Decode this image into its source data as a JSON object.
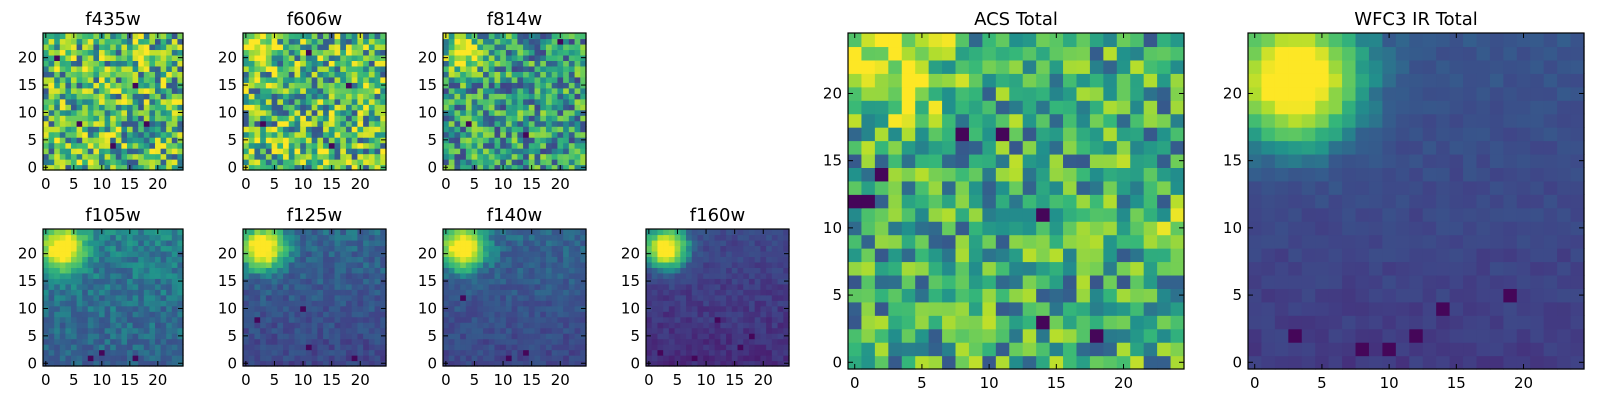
{
  "chart_data": [
    {
      "type": "heatmap",
      "title": "f435w",
      "colormap": "viridis",
      "grid_size": [
        25,
        25
      ],
      "xticks": [
        0,
        5,
        10,
        15,
        20
      ],
      "yticks": [
        0,
        5,
        10,
        15,
        20
      ],
      "blobs": [],
      "noise": 0.35,
      "base": 0.68,
      "bright_spots": [
        [
          24,
          22
        ],
        [
          10,
          12
        ],
        [
          7,
          14
        ]
      ],
      "dark_spots": [
        [
          16,
          15
        ],
        [
          2,
          20
        ],
        [
          18,
          8
        ],
        [
          12,
          4
        ],
        [
          6,
          8
        ]
      ]
    },
    {
      "type": "heatmap",
      "title": "f606w",
      "colormap": "viridis",
      "grid_size": [
        25,
        25
      ],
      "xticks": [
        0,
        5,
        10,
        15,
        20
      ],
      "yticks": [
        0,
        5,
        10,
        15,
        20
      ],
      "blobs": [
        {
          "x": 2,
          "y": 22,
          "r": 2.4,
          "amp": 0.35
        }
      ],
      "noise": 0.35,
      "base": 0.68,
      "bright_spots": [
        [
          3,
          22
        ],
        [
          2,
          23
        ]
      ],
      "dark_spots": [
        [
          11,
          21
        ],
        [
          18,
          15
        ],
        [
          15,
          4
        ],
        [
          3,
          8
        ]
      ]
    },
    {
      "type": "heatmap",
      "title": "f814w",
      "colormap": "viridis",
      "grid_size": [
        25,
        25
      ],
      "xticks": [
        0,
        5,
        10,
        15,
        20
      ],
      "yticks": [
        0,
        5,
        10,
        15,
        20
      ],
      "blobs": [
        {
          "x": 3,
          "y": 21,
          "r": 2.2,
          "amp": 0.55
        }
      ],
      "noise": 0.3,
      "base": 0.55,
      "bright_spots": [
        [
          3,
          21
        ],
        [
          4,
          22
        ]
      ],
      "dark_spots": [
        [
          4,
          8
        ],
        [
          20,
          23
        ],
        [
          14,
          6
        ]
      ]
    },
    {
      "type": "heatmap",
      "title": "f105w",
      "colormap": "viridis",
      "grid_size": [
        25,
        25
      ],
      "xticks": [
        0,
        5,
        10,
        15,
        20
      ],
      "yticks": [
        0,
        5,
        10,
        15,
        20
      ],
      "blobs": [
        {
          "x": 3,
          "y": 21,
          "r": 2.5,
          "amp": 0.75
        }
      ],
      "noise": 0.08,
      "base": 0.42,
      "gradient": 0.1,
      "bright_spots": [
        [
          3,
          21
        ],
        [
          2,
          22
        ]
      ],
      "dark_spots": [
        [
          10,
          2
        ],
        [
          8,
          1
        ],
        [
          16,
          1
        ]
      ]
    },
    {
      "type": "heatmap",
      "title": "f125w",
      "colormap": "viridis",
      "grid_size": [
        25,
        25
      ],
      "xticks": [
        0,
        5,
        10,
        15,
        20
      ],
      "yticks": [
        0,
        5,
        10,
        15,
        20
      ],
      "blobs": [
        {
          "x": 3,
          "y": 21,
          "r": 2.5,
          "amp": 0.8
        }
      ],
      "noise": 0.08,
      "base": 0.33,
      "gradient": 0.12,
      "bright_spots": [
        [
          3,
          21
        ]
      ],
      "dark_spots": [
        [
          2,
          8
        ],
        [
          11,
          3
        ],
        [
          19,
          1
        ],
        [
          10,
          10
        ]
      ]
    },
    {
      "type": "heatmap",
      "title": "f140w",
      "colormap": "viridis",
      "grid_size": [
        25,
        25
      ],
      "xticks": [
        0,
        5,
        10,
        15,
        20
      ],
      "yticks": [
        0,
        5,
        10,
        15,
        20
      ],
      "blobs": [
        {
          "x": 3,
          "y": 21,
          "r": 2.5,
          "amp": 0.8
        }
      ],
      "noise": 0.07,
      "base": 0.33,
      "gradient": 0.12,
      "bright_spots": [
        [
          3,
          21
        ],
        [
          2,
          22
        ]
      ],
      "dark_spots": [
        [
          14,
          2
        ],
        [
          11,
          1
        ],
        [
          3,
          12
        ]
      ]
    },
    {
      "type": "heatmap",
      "title": "f160w",
      "colormap": "viridis",
      "grid_size": [
        25,
        25
      ],
      "xticks": [
        0,
        5,
        10,
        15,
        20
      ],
      "yticks": [
        0,
        5,
        10,
        15,
        20
      ],
      "blobs": [
        {
          "x": 3,
          "y": 21,
          "r": 2.5,
          "amp": 0.85
        }
      ],
      "noise": 0.06,
      "base": 0.22,
      "gradient": 0.12,
      "bright_spots": [
        [
          3,
          21
        ],
        [
          2,
          22
        ]
      ],
      "dark_spots": [
        [
          2,
          2
        ],
        [
          8,
          1
        ],
        [
          18,
          5
        ],
        [
          16,
          3
        ],
        [
          12,
          8
        ]
      ]
    },
    {
      "type": "heatmap",
      "title": "ACS Total",
      "colormap": "viridis",
      "grid_size": [
        25,
        25
      ],
      "xticks": [
        0,
        5,
        10,
        15,
        20
      ],
      "yticks": [
        0,
        5,
        10,
        15,
        20
      ],
      "blobs": [
        {
          "x": 3,
          "y": 22,
          "r": 2.8,
          "amp": 0.35
        }
      ],
      "noise": 0.28,
      "base": 0.62,
      "bright_spots": [
        [
          2,
          22
        ],
        [
          3,
          23
        ],
        [
          4,
          21
        ],
        [
          24,
          11
        ],
        [
          23,
          10
        ]
      ],
      "dark_spots": [
        [
          0,
          12
        ],
        [
          8,
          17
        ],
        [
          11,
          17
        ],
        [
          14,
          11
        ],
        [
          18,
          2
        ],
        [
          14,
          3
        ],
        [
          2,
          14
        ],
        [
          1,
          12
        ]
      ]
    },
    {
      "type": "heatmap",
      "title": "WFC3 IR Total",
      "colormap": "viridis",
      "grid_size": [
        25,
        25
      ],
      "xticks": [
        0,
        5,
        10,
        15,
        20
      ],
      "yticks": [
        0,
        5,
        10,
        15,
        20
      ],
      "blobs": [
        {
          "x": 3,
          "y": 21,
          "r": 3.2,
          "amp": 0.85
        }
      ],
      "noise": 0.04,
      "base": 0.28,
      "gradient": 0.12,
      "bright_spots": [
        [
          3,
          21
        ],
        [
          2,
          22
        ],
        [
          4,
          21
        ]
      ],
      "dark_spots": [
        [
          8,
          1
        ],
        [
          10,
          1
        ],
        [
          12,
          2
        ],
        [
          14,
          4
        ],
        [
          19,
          5
        ],
        [
          3,
          2
        ]
      ]
    }
  ]
}
